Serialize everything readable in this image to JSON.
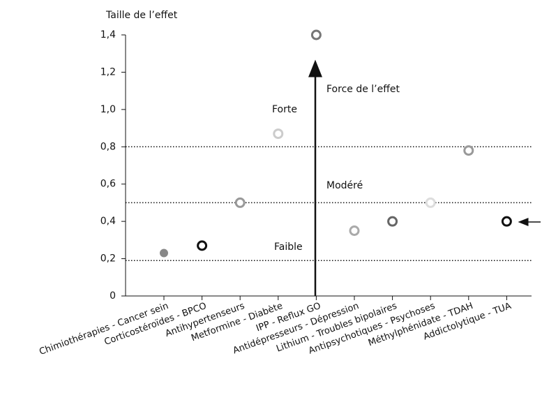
{
  "chart_data": {
    "type": "scatter",
    "y_label": "Taille de l’effet",
    "categories": [
      "Chimiothérapies - Cancer sein",
      "Corticostéroïdes - BPCO",
      "Antihypertenseurs",
      "Metformine - Diabète",
      "IPP - Reflux GO",
      "Antidépresseurs - Dépression",
      "Lithium - Troubles bipolaires",
      "Antipsychotiques - Psychoses",
      "Méthylphénidate - TDAH",
      "Addictolytique - TUA"
    ],
    "values": [
      0.23,
      0.27,
      0.5,
      0.87,
      1.4,
      0.35,
      0.4,
      0.5,
      0.78,
      0.4
    ],
    "colors": [
      "#888888",
      "#111111",
      "#999999",
      "#cccccc",
      "#777777",
      "#aaaaaa",
      "#666666",
      "#dddddd",
      "#999999",
      "#111111"
    ],
    "markers": [
      "filled",
      "ring",
      "ring",
      "ring",
      "ring",
      "ring",
      "ring",
      "ring",
      "ring",
      "ring"
    ],
    "ylim": [
      0,
      1.4
    ],
    "yticks": [
      0,
      {
        "value": 0.2,
        "label": "0,2"
      },
      {
        "value": 0.4,
        "label": "0,4"
      },
      {
        "value": 0.6,
        "label": "0,6"
      },
      {
        "value": 0.8,
        "label": "0,8"
      },
      {
        "value": 1.0,
        "label": "1,0"
      },
      {
        "value": 1.2,
        "label": "1,2"
      },
      {
        "value": 1.4,
        "label": "1,4"
      }
    ],
    "thresholds": [
      0.8,
      0.5,
      0.19
    ],
    "annotations": [
      "Forte",
      "Modéré",
      "Faible",
      "Force de l’effet"
    ]
  }
}
